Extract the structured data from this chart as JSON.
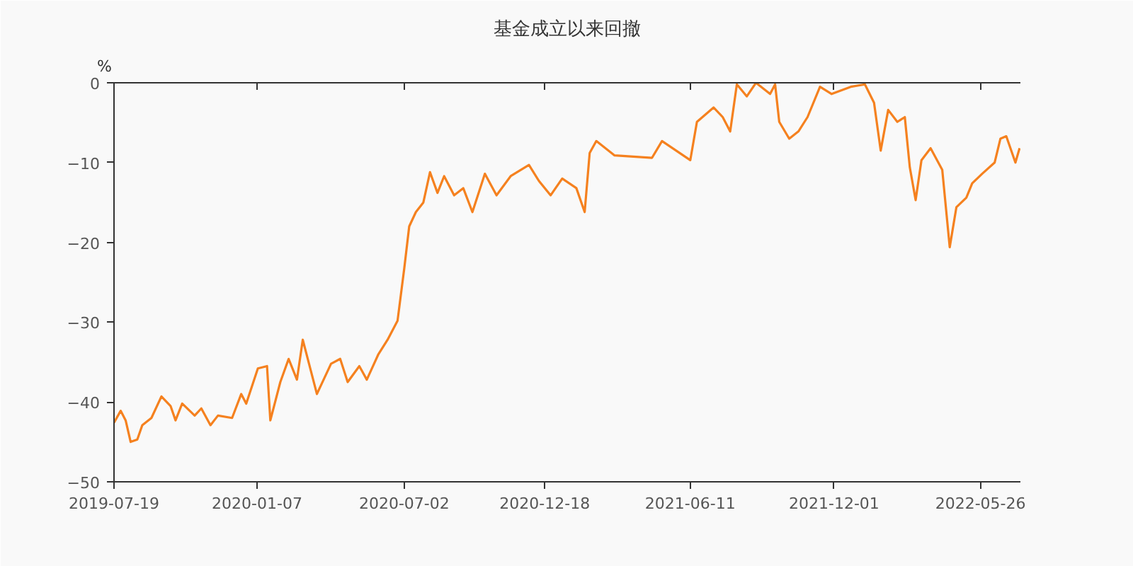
{
  "chart_data": {
    "type": "line",
    "title": "基金成立以来回撤",
    "ylabel": "%",
    "x": [
      "2019-07-19",
      "2019-07-27",
      "2019-08-02",
      "2019-08-08",
      "2019-08-16",
      "2019-08-22",
      "2019-09-02",
      "2019-09-14",
      "2019-09-25",
      "2019-10-01",
      "2019-10-09",
      "2019-10-24",
      "2019-11-01",
      "2019-11-12",
      "2019-11-21",
      "2019-12-08",
      "2019-12-19",
      "2019-12-25",
      "2020-01-08",
      "2020-01-19",
      "2020-01-23",
      "2020-02-04",
      "2020-02-14",
      "2020-02-24",
      "2020-03-02",
      "2020-03-19",
      "2020-04-05",
      "2020-04-16",
      "2020-04-25",
      "2020-05-09",
      "2020-05-18",
      "2020-06-01",
      "2020-06-12",
      "2020-06-24",
      "2020-07-02",
      "2020-07-08",
      "2020-07-16",
      "2020-07-25",
      "2020-08-02",
      "2020-08-11",
      "2020-08-19",
      "2020-08-31",
      "2020-09-11",
      "2020-09-22",
      "2020-10-07",
      "2020-10-21",
      "2020-11-07",
      "2020-11-29",
      "2020-12-11",
      "2020-12-25",
      "2021-01-08",
      "2021-01-25",
      "2021-02-04",
      "2021-02-10",
      "2021-02-18",
      "2021-03-12",
      "2021-04-26",
      "2021-05-08",
      "2021-06-11",
      "2021-06-19",
      "2021-07-09",
      "2021-07-20",
      "2021-07-29",
      "2021-08-06",
      "2021-08-18",
      "2021-08-29",
      "2021-09-15",
      "2021-09-21",
      "2021-09-26",
      "2021-10-08",
      "2021-10-19",
      "2021-10-30",
      "2021-11-14",
      "2021-11-28",
      "2021-12-21",
      "2022-01-07",
      "2022-01-18",
      "2022-01-26",
      "2022-02-04",
      "2022-02-15",
      "2022-02-24",
      "2022-03-02",
      "2022-03-09",
      "2022-03-16",
      "2022-03-27",
      "2022-04-10",
      "2022-04-19",
      "2022-04-27",
      "2022-05-09",
      "2022-05-16",
      "2022-05-28",
      "2022-06-12",
      "2022-06-19",
      "2022-06-26",
      "2022-07-07",
      "2022-07-12"
    ],
    "series": [
      {
        "color": "#f5811f",
        "values": [
          -42.6,
          -41.1,
          -42.3,
          -45.0,
          -44.7,
          -42.9,
          -42.0,
          -39.3,
          -40.5,
          -42.3,
          -40.2,
          -41.7,
          -40.8,
          -42.9,
          -41.7,
          -42.0,
          -39.0,
          -40.2,
          -35.8,
          -35.5,
          -42.3,
          -37.5,
          -34.6,
          -37.2,
          -32.2,
          -39.0,
          -35.2,
          -34.6,
          -37.5,
          -35.5,
          -37.2,
          -34.0,
          -32.2,
          -29.8,
          -23.3,
          -18.0,
          -16.2,
          -15.0,
          -11.2,
          -13.8,
          -11.7,
          -14.1,
          -13.2,
          -16.2,
          -11.4,
          -14.1,
          -11.7,
          -10.3,
          -12.3,
          -14.1,
          -12.0,
          -13.2,
          -16.2,
          -8.8,
          -7.3,
          -9.1,
          -9.4,
          -7.3,
          -9.7,
          -4.9,
          -3.1,
          -4.3,
          -6.1,
          -0.2,
          -1.7,
          0,
          -1.4,
          -0.2,
          -4.9,
          -7.0,
          -6.1,
          -4.3,
          -0.5,
          -1.4,
          -0.5,
          -0.2,
          -2.5,
          -8.5,
          -3.4,
          -4.9,
          -4.3,
          -10.6,
          -14.7,
          -9.7,
          -8.2,
          -10.9,
          -20.6,
          -15.6,
          -14.4,
          -12.6,
          -11.4,
          -10.0,
          -7.0,
          -6.7,
          -10.0,
          -8.2
        ]
      }
    ],
    "xlim": [
      "2019-07-19",
      "2022-07-13"
    ],
    "xticks": [
      "2019-07-19",
      "2020-01-07",
      "2020-07-02",
      "2020-12-18",
      "2021-06-11",
      "2021-12-01",
      "2022-05-26"
    ],
    "ylim": [
      -50,
      0
    ],
    "yticks": [
      -50,
      -40,
      -30,
      -20,
      -10,
      0
    ],
    "grid": false,
    "marker": "none",
    "line_style": "solid"
  }
}
